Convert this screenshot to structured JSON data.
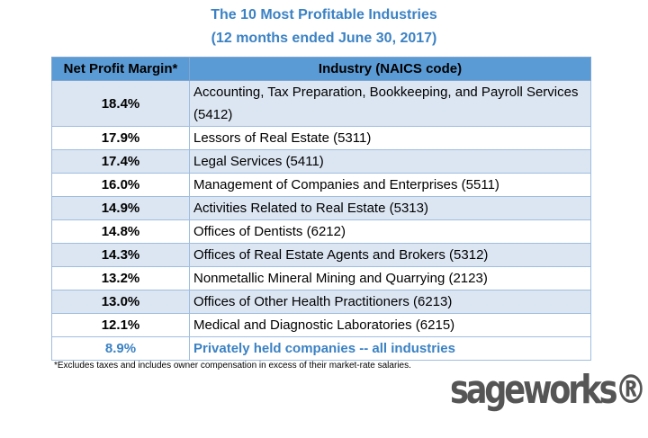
{
  "header": {
    "title": "The 10 Most Profitable Industries",
    "subtitle": "(12 months ended June 30, 2017)"
  },
  "table": {
    "columns": [
      "Net Profit Margin*",
      "Industry (NAICS code)"
    ],
    "rows": [
      [
        "18.4%",
        "Accounting, Tax Preparation, Bookkeeping, and Payroll Services (5412)"
      ],
      [
        "17.9%",
        "Lessors of Real Estate (5311)"
      ],
      [
        "17.4%",
        "Legal Services (5411)"
      ],
      [
        "16.0%",
        "Management of Companies and Enterprises (5511)"
      ],
      [
        "14.9%",
        "Activities Related to Real Estate (5313)"
      ],
      [
        "14.8%",
        "Offices of Dentists (6212)"
      ],
      [
        "14.3%",
        "Offices of Real Estate Agents and Brokers (5312)"
      ],
      [
        "13.2%",
        "Nonmetallic Mineral Mining and Quarrying (2123)"
      ],
      [
        "13.0%",
        "Offices of Other Health Practitioners (6213)"
      ],
      [
        "12.1%",
        "Medical and Diagnostic Laboratories (6215)"
      ],
      [
        "8.9%",
        "Privately held companies -- all industries"
      ]
    ]
  },
  "footnote": "*Excludes taxes and includes owner compensation in excess of their market-rate salaries.",
  "logo": "sageworks®"
}
